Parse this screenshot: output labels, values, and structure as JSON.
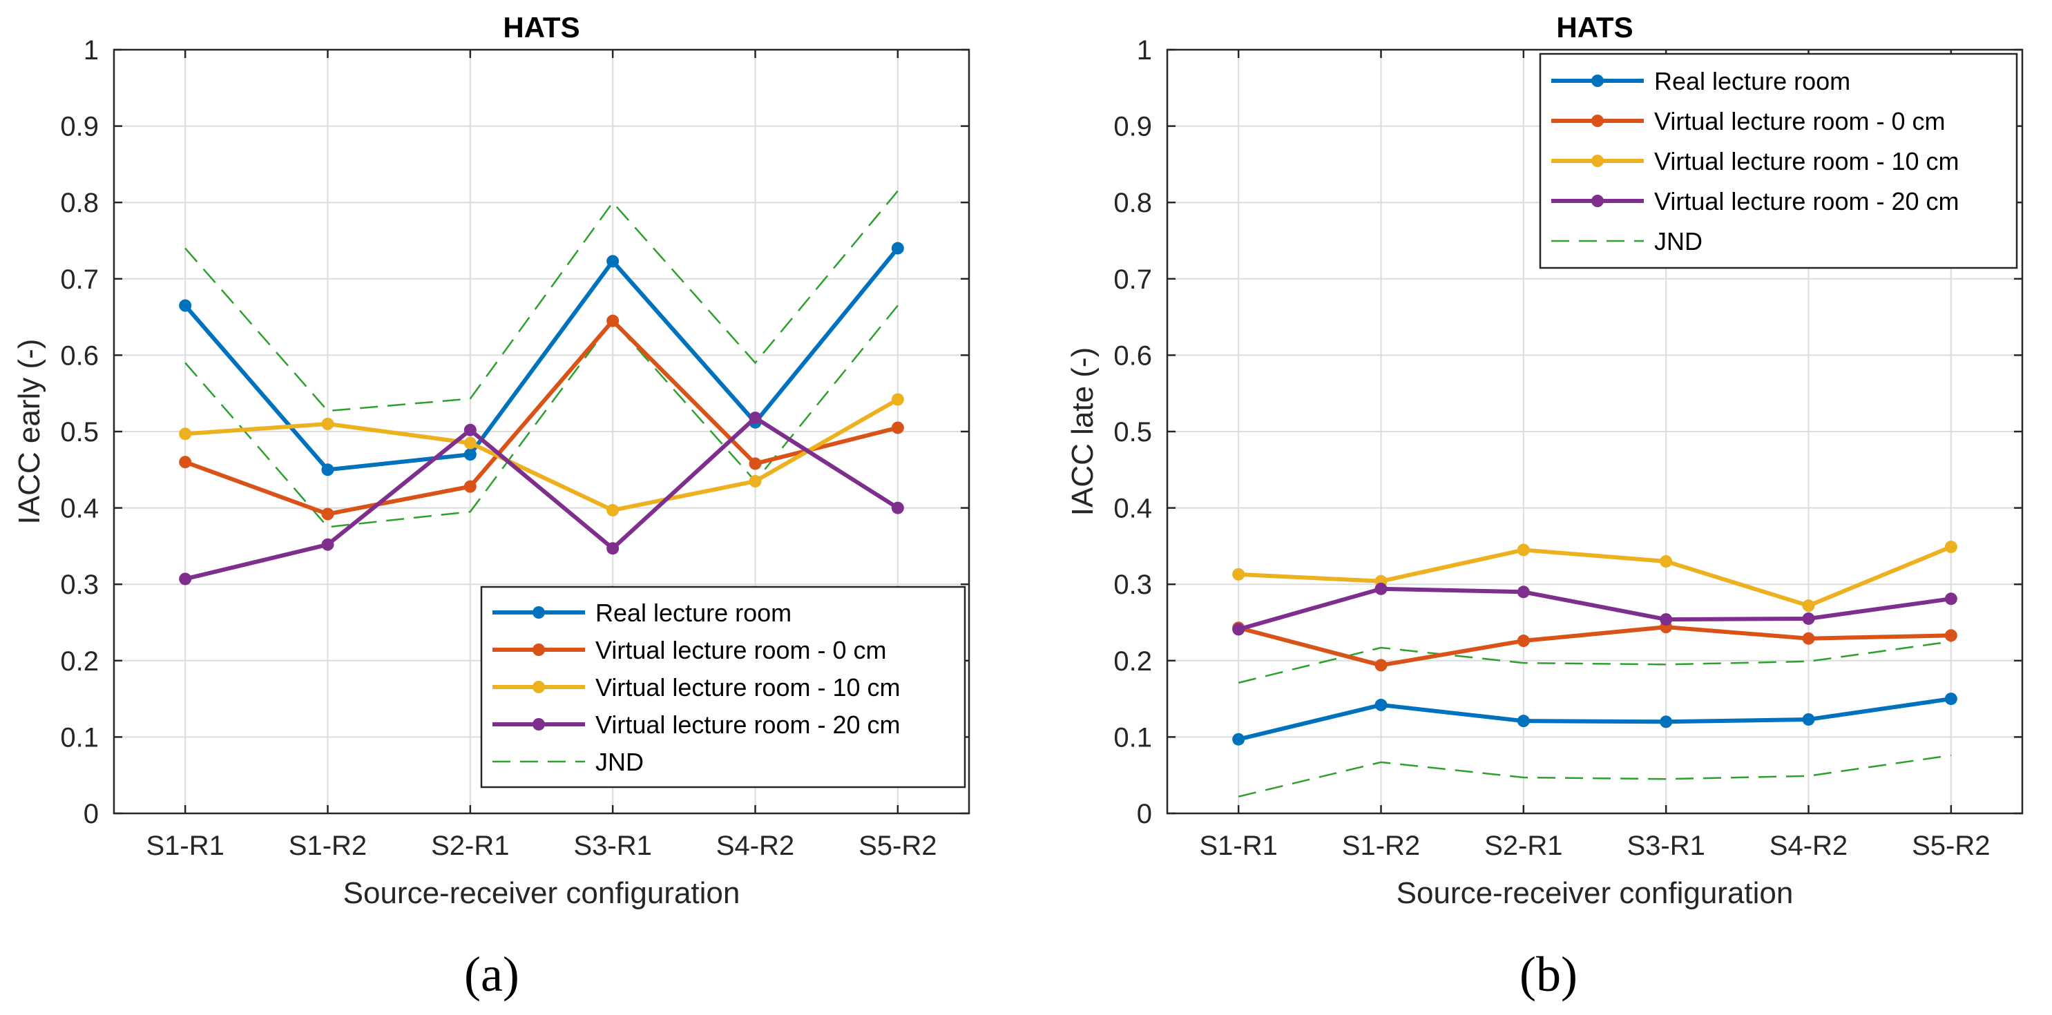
{
  "chart_data": [
    {
      "type": "line",
      "title": "HATS",
      "xlabel": "Source-receiver configuration",
      "ylabel": "IACC early (-)",
      "categories": [
        "S1-R1",
        "S1-R2",
        "S2-R1",
        "S3-R1",
        "S4-R2",
        "S5-R2"
      ],
      "ylim": [
        0,
        1
      ],
      "yticks": [
        "0",
        "0.1",
        "0.2",
        "0.3",
        "0.4",
        "0.5",
        "0.6",
        "0.7",
        "0.8",
        "0.9",
        "1"
      ],
      "grid": true,
      "legend_position": "bottom-right",
      "panel_label": "(a)",
      "series": [
        {
          "name": "Real lecture room",
          "color": "#0072BD",
          "values": [
            0.665,
            0.45,
            0.47,
            0.723,
            0.512,
            0.74
          ]
        },
        {
          "name": "Virtual lecture room - 0 cm",
          "color": "#D95319",
          "values": [
            0.46,
            0.392,
            0.428,
            0.645,
            0.458,
            0.505
          ]
        },
        {
          "name": "Virtual lecture room - 10 cm",
          "color": "#EDB120",
          "values": [
            0.497,
            0.51,
            0.485,
            0.397,
            0.435,
            0.542
          ]
        },
        {
          "name": "Virtual lecture room - 20 cm",
          "color": "#7E2F8E",
          "values": [
            0.307,
            0.352,
            0.502,
            0.347,
            0.518,
            0.4
          ]
        }
      ],
      "jnd": {
        "name": "JND",
        "color": "#2CA02C",
        "upper": [
          0.74,
          0.527,
          0.543,
          0.8,
          0.59,
          0.815
        ],
        "lower": [
          0.59,
          0.375,
          0.395,
          0.645,
          0.435,
          0.665
        ]
      }
    },
    {
      "type": "line",
      "title": "HATS",
      "xlabel": "Source-receiver configuration",
      "ylabel": "IACC late (-)",
      "categories": [
        "S1-R1",
        "S1-R2",
        "S2-R1",
        "S3-R1",
        "S4-R2",
        "S5-R2"
      ],
      "ylim": [
        0,
        1
      ],
      "yticks": [
        "0",
        "0.1",
        "0.2",
        "0.3",
        "0.4",
        "0.5",
        "0.6",
        "0.7",
        "0.8",
        "0.9",
        "1"
      ],
      "grid": true,
      "legend_position": "top-right",
      "panel_label": "(b)",
      "series": [
        {
          "name": "Real lecture room",
          "color": "#0072BD",
          "values": [
            0.097,
            0.142,
            0.121,
            0.12,
            0.123,
            0.15
          ]
        },
        {
          "name": "Virtual lecture room - 0 cm",
          "color": "#D95319",
          "values": [
            0.243,
            0.194,
            0.226,
            0.244,
            0.229,
            0.233
          ]
        },
        {
          "name": "Virtual lecture room - 10 cm",
          "color": "#EDB120",
          "values": [
            0.313,
            0.304,
            0.345,
            0.33,
            0.272,
            0.349
          ]
        },
        {
          "name": "Virtual lecture room - 20 cm",
          "color": "#7E2F8E",
          "values": [
            0.241,
            0.294,
            0.29,
            0.254,
            0.255,
            0.281
          ]
        }
      ],
      "jnd": {
        "name": "JND",
        "color": "#2CA02C",
        "upper": [
          0.171,
          0.217,
          0.197,
          0.195,
          0.199,
          0.225
        ],
        "lower": [
          0.022,
          0.067,
          0.047,
          0.045,
          0.049,
          0.076
        ]
      }
    }
  ]
}
